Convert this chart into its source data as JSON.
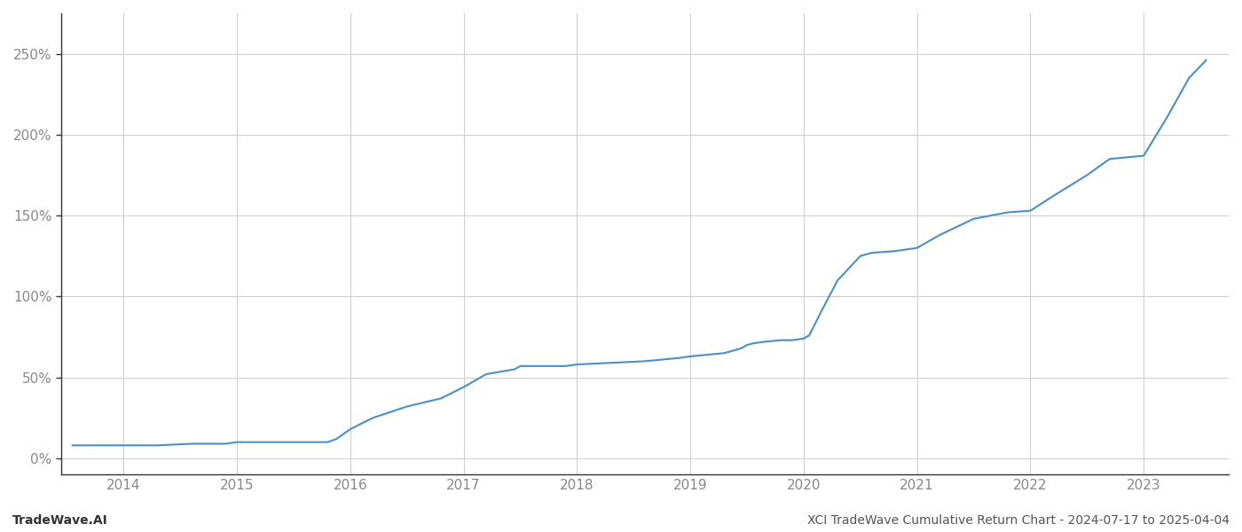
{
  "title": "",
  "footer_left": "TradeWave.AI",
  "footer_right": "XCI TradeWave Cumulative Return Chart - 2024-07-17 to 2025-04-04",
  "line_color": "#4a90c4",
  "line_width": 1.5,
  "background_color": "#ffffff",
  "grid_color": "#cccccc",
  "x_years": [
    2014,
    2015,
    2016,
    2017,
    2018,
    2019,
    2020,
    2021,
    2022,
    2023
  ],
  "y_ticks": [
    0,
    50,
    100,
    150,
    200,
    250
  ],
  "xlim": [
    2013.45,
    2023.75
  ],
  "ylim": [
    -10,
    275
  ],
  "data_x": [
    2013.55,
    2014.0,
    2014.3,
    2014.6,
    2014.9,
    2015.0,
    2015.2,
    2015.5,
    2015.8,
    2015.88,
    2016.0,
    2016.2,
    2016.5,
    2016.8,
    2017.0,
    2017.2,
    2017.45,
    2017.5,
    2017.7,
    2017.9,
    2018.0,
    2018.3,
    2018.6,
    2018.9,
    2019.0,
    2019.15,
    2019.3,
    2019.45,
    2019.5,
    2019.55,
    2019.65,
    2019.8,
    2019.9,
    2020.0,
    2020.05,
    2020.15,
    2020.3,
    2020.5,
    2020.6,
    2020.8,
    2021.0,
    2021.2,
    2021.5,
    2021.8,
    2022.0,
    2022.2,
    2022.5,
    2022.7,
    2023.0,
    2023.2,
    2023.4,
    2023.55
  ],
  "data_y": [
    8,
    8,
    8,
    9,
    9,
    10,
    10,
    10,
    10,
    12,
    18,
    25,
    32,
    37,
    44,
    52,
    55,
    57,
    57,
    57,
    58,
    59,
    60,
    62,
    63,
    64,
    65,
    68,
    70,
    71,
    72,
    73,
    73,
    74,
    76,
    90,
    110,
    125,
    127,
    128,
    130,
    138,
    148,
    152,
    153,
    162,
    175,
    185,
    187,
    210,
    235,
    246
  ]
}
